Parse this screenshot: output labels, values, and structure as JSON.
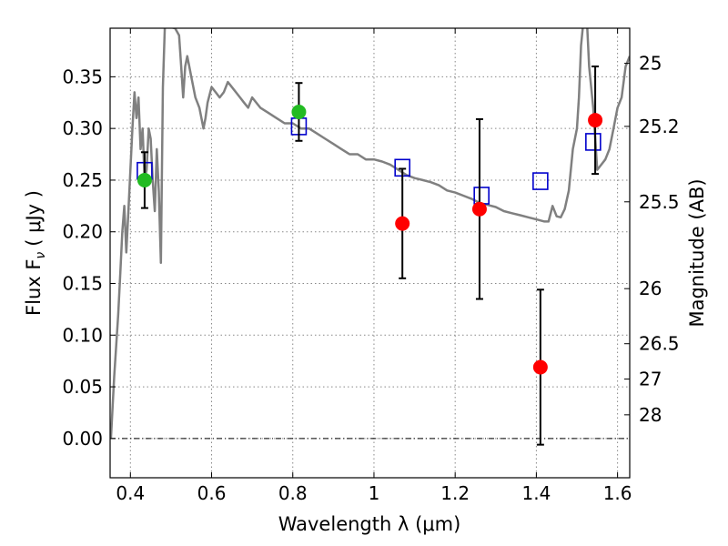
{
  "chart_data": {
    "type": "scatter",
    "xlabel": "Wavelength  λ (μm)",
    "ylabel_left": "Flux  F",
    "ylabel_left_sub": "ν",
    "ylabel_left_unit": "( μJy )",
    "ylabel_right": "Magnitude (AB)",
    "xlim": [
      0.35,
      1.63
    ],
    "ylim": [
      -0.038,
      0.397
    ],
    "grid": true,
    "x_ticks": [
      0.4,
      0.6,
      0.8,
      1.0,
      1.2,
      1.4,
      1.6
    ],
    "x_tick_labels": [
      "0.4",
      "0.6",
      "0.8",
      "1",
      "1.2",
      "1.4",
      "1.6"
    ],
    "y_ticks": [
      0.0,
      0.05,
      0.1,
      0.15,
      0.2,
      0.25,
      0.3,
      0.35
    ],
    "y_tick_labels": [
      "0.00",
      "0.05",
      "0.10",
      "0.15",
      "0.20",
      "0.25",
      "0.30",
      "0.35"
    ],
    "right_ticks": [
      {
        "label": "25",
        "flux": 0.363
      },
      {
        "label": "25.2",
        "flux": 0.302
      },
      {
        "label": "25.5",
        "flux": 0.229
      },
      {
        "label": "26",
        "flux": 0.145
      },
      {
        "label": "26.5",
        "flux": 0.0917
      },
      {
        "label": "27",
        "flux": 0.0575
      },
      {
        "label": "28",
        "flux": 0.0229
      }
    ],
    "colors": {
      "sed_line": "#808080",
      "model_box": "#0000cc",
      "green_points": "#22bb22",
      "red_points": "#ff0000",
      "error_bar": "#000000",
      "grid": "#888888"
    },
    "sed_model": {
      "x": [
        0.352,
        0.36,
        0.37,
        0.375,
        0.38,
        0.385,
        0.39,
        0.395,
        0.4,
        0.405,
        0.41,
        0.415,
        0.42,
        0.425,
        0.43,
        0.435,
        0.44,
        0.445,
        0.45,
        0.455,
        0.46,
        0.465,
        0.47,
        0.475,
        0.48,
        0.485,
        0.49,
        0.5,
        0.51,
        0.52,
        0.525,
        0.53,
        0.535,
        0.54,
        0.545,
        0.55,
        0.56,
        0.57,
        0.58,
        0.585,
        0.59,
        0.6,
        0.61,
        0.62,
        0.63,
        0.64,
        0.65,
        0.66,
        0.67,
        0.68,
        0.69,
        0.7,
        0.72,
        0.74,
        0.76,
        0.78,
        0.8,
        0.82,
        0.84,
        0.86,
        0.88,
        0.9,
        0.92,
        0.94,
        0.96,
        0.98,
        1.0,
        1.02,
        1.04,
        1.06,
        1.08,
        1.1,
        1.12,
        1.14,
        1.16,
        1.18,
        1.2,
        1.22,
        1.24,
        1.26,
        1.28,
        1.3,
        1.32,
        1.34,
        1.36,
        1.38,
        1.4,
        1.42,
        1.43,
        1.44,
        1.45,
        1.46,
        1.47,
        1.48,
        1.49,
        1.5,
        1.505,
        1.51,
        1.515,
        1.52,
        1.525,
        1.53,
        1.54,
        1.55,
        1.56,
        1.57,
        1.58,
        1.59,
        1.6,
        1.61,
        1.62,
        1.63
      ],
      "y": [
        0.0,
        0.06,
        0.12,
        0.16,
        0.2,
        0.225,
        0.18,
        0.22,
        0.26,
        0.3,
        0.335,
        0.31,
        0.33,
        0.28,
        0.3,
        0.25,
        0.26,
        0.3,
        0.29,
        0.25,
        0.22,
        0.28,
        0.24,
        0.17,
        0.34,
        0.4,
        0.4,
        0.398,
        0.397,
        0.39,
        0.36,
        0.33,
        0.36,
        0.37,
        0.36,
        0.35,
        0.33,
        0.32,
        0.3,
        0.31,
        0.325,
        0.34,
        0.335,
        0.33,
        0.335,
        0.345,
        0.34,
        0.335,
        0.33,
        0.325,
        0.32,
        0.33,
        0.32,
        0.315,
        0.31,
        0.305,
        0.305,
        0.3,
        0.3,
        0.295,
        0.29,
        0.285,
        0.28,
        0.275,
        0.275,
        0.27,
        0.27,
        0.268,
        0.265,
        0.26,
        0.255,
        0.252,
        0.25,
        0.248,
        0.245,
        0.24,
        0.238,
        0.235,
        0.232,
        0.228,
        0.226,
        0.224,
        0.22,
        0.218,
        0.216,
        0.214,
        0.212,
        0.21,
        0.21,
        0.225,
        0.215,
        0.214,
        0.222,
        0.24,
        0.28,
        0.3,
        0.33,
        0.38,
        0.4,
        0.4,
        0.4,
        0.36,
        0.32,
        0.26,
        0.265,
        0.27,
        0.28,
        0.3,
        0.32,
        0.33,
        0.36,
        0.37
      ]
    },
    "model_boxes": {
      "x": [
        0.435,
        0.815,
        1.07,
        1.265,
        1.41,
        1.54
      ],
      "y": [
        0.259,
        0.302,
        0.262,
        0.235,
        0.249,
        0.287
      ]
    },
    "green_points": {
      "x": [
        0.435,
        0.815
      ],
      "y": [
        0.25,
        0.316
      ],
      "err": [
        0.027,
        0.028
      ]
    },
    "red_points": {
      "x": [
        1.07,
        1.26,
        1.41,
        1.545
      ],
      "y": [
        0.208,
        0.222,
        0.069,
        0.308
      ],
      "err": [
        0.053,
        0.087,
        0.075,
        0.052
      ]
    },
    "zero_line": 0.0
  }
}
